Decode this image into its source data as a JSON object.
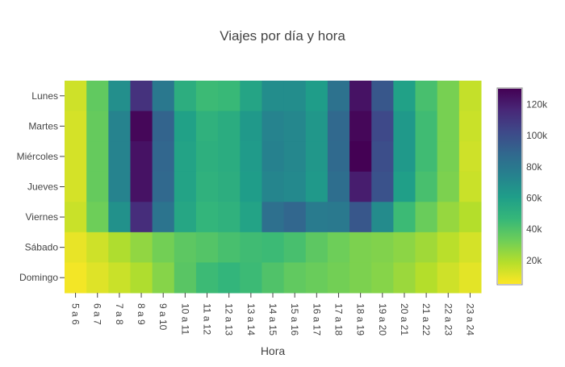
{
  "chart_data": {
    "type": "heatmap",
    "title": "Viajes por día y hora",
    "xlabel": "Hora",
    "ylabel": "",
    "x_categories": [
      "5 a 6",
      "6 a 7",
      "7 a 8",
      "8 a 9",
      "9 a 10",
      "10 a 11",
      "11 a 12",
      "12 a 13",
      "13 a 14",
      "14 a 15",
      "15 a 16",
      "16 a 17",
      "17 a 18",
      "18 a 19",
      "19 a 20",
      "20 a 21",
      "21 a 22",
      "22 a 23",
      "23 a 24"
    ],
    "y_categories": [
      "Lunes",
      "Martes",
      "Miércoles",
      "Jueves",
      "Viernes",
      "Sábado",
      "Domingo"
    ],
    "z": [
      [
        14000,
        36000,
        68000,
        112000,
        80000,
        52000,
        45000,
        46000,
        57000,
        69000,
        69000,
        61000,
        83000,
        124000,
        96000,
        59000,
        42000,
        31000,
        16000
      ],
      [
        13000,
        35000,
        74000,
        128000,
        90000,
        59000,
        50000,
        53000,
        63000,
        74000,
        72000,
        64000,
        88000,
        128000,
        102000,
        63000,
        44000,
        31000,
        15000
      ],
      [
        13000,
        35000,
        74000,
        124000,
        89000,
        58000,
        51000,
        53000,
        62000,
        75000,
        72000,
        64000,
        87000,
        130000,
        100000,
        63000,
        44000,
        31000,
        14000
      ],
      [
        13000,
        35000,
        74000,
        124000,
        88000,
        58000,
        50000,
        52000,
        61000,
        73000,
        71000,
        63000,
        85000,
        120000,
        98000,
        60000,
        42000,
        30000,
        15000
      ],
      [
        15000,
        33000,
        67000,
        114000,
        82000,
        56000,
        48000,
        50000,
        58000,
        84000,
        89000,
        78000,
        79000,
        96000,
        70000,
        45000,
        34000,
        25000,
        19000
      ],
      [
        9000,
        14000,
        20000,
        26000,
        32000,
        37000,
        39000,
        42000,
        44000,
        45000,
        42000,
        37000,
        33000,
        30000,
        29000,
        27000,
        23000,
        18000,
        13000
      ],
      [
        7000,
        11000,
        15000,
        20000,
        28000,
        38000,
        45000,
        48000,
        45000,
        40000,
        36000,
        34000,
        32000,
        30000,
        28000,
        24000,
        19000,
        14000,
        10000
      ]
    ],
    "zmin": 5000,
    "zmax": 130000,
    "colorscale": [
      "#fde725",
      "#b5de2b",
      "#6ece58",
      "#35b779",
      "#1f9e89",
      "#26828e",
      "#31688e",
      "#3e4989",
      "#482878",
      "#440154"
    ],
    "colorbar_ticks": [
      20000,
      40000,
      60000,
      80000,
      100000,
      120000
    ],
    "colorbar_tick_labels": [
      "20k",
      "40k",
      "60k",
      "80k",
      "100k",
      "120k"
    ]
  }
}
